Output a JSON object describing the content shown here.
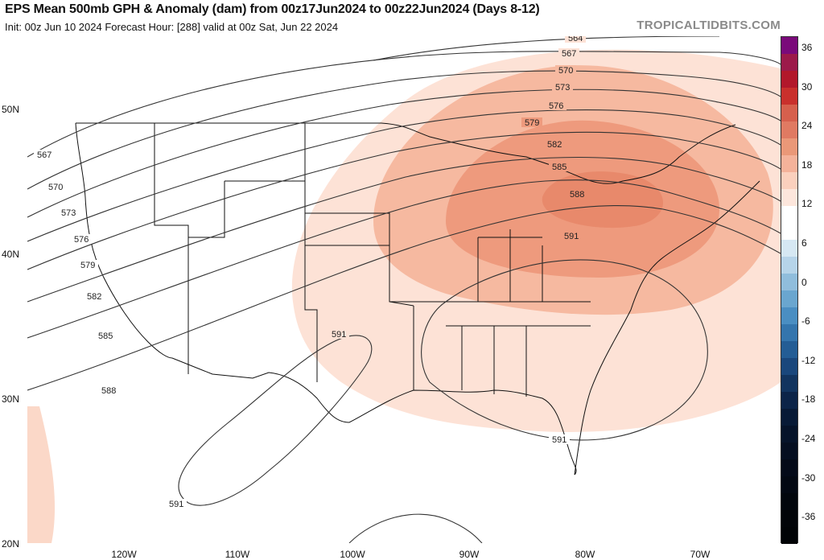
{
  "header": {
    "title": "EPS Mean 500mb GPH & Anomaly (dam) from 00z17Jun2024 to 00z22Jun2024 (Days 8-12)",
    "subtitle": "Init: 00z Jun 10 2024   Forecast Hour: [288]   valid at 00z Sat, Jun 22 2024",
    "brand": "TROPICALTIDBITS.COM"
  },
  "axes": {
    "latitudes": [
      {
        "label": "50N",
        "lat": 50
      },
      {
        "label": "40N",
        "lat": 40
      },
      {
        "label": "30N",
        "lat": 30
      },
      {
        "label": "20N",
        "lat": 20
      }
    ],
    "longitudes": [
      {
        "label": "120W",
        "lon": -120
      },
      {
        "label": "110W",
        "lon": -110
      },
      {
        "label": "100W",
        "lon": -100
      },
      {
        "label": "90W",
        "lon": -90
      },
      {
        "label": "80W",
        "lon": -80
      },
      {
        "label": "70W",
        "lon": -70
      }
    ]
  },
  "contours": {
    "labels": [
      "564",
      "567",
      "570",
      "573",
      "576",
      "579",
      "582",
      "585",
      "588",
      "591"
    ],
    "units": "dam"
  },
  "anomaly": {
    "max_label": "588",
    "center_region": "Great Lakes / Northeast US"
  },
  "colorbar": {
    "labels": [
      "36",
      "30",
      "24",
      "18",
      "12",
      "6",
      "0",
      "-6",
      "-12",
      "-18",
      "-24",
      "-30",
      "-36"
    ],
    "colors": [
      "#7a0a7a",
      "#9c1a4a",
      "#b2182b",
      "#c9302c",
      "#d6604d",
      "#e07a62",
      "#ea9878",
      "#f4b29a",
      "#fbd0bd",
      "#fde6dc",
      "#ffffff",
      "#ffffff",
      "#d6e8f3",
      "#b6d4e9",
      "#90bddc",
      "#6aa6cf",
      "#4a8ec2",
      "#3475ad",
      "#245d95",
      "#1a477c",
      "#12345f",
      "#0c2448",
      "#081a36",
      "#061329",
      "#050e20",
      "#040a18",
      "#030812",
      "#02060c",
      "#020408",
      "#010306"
    ]
  }
}
